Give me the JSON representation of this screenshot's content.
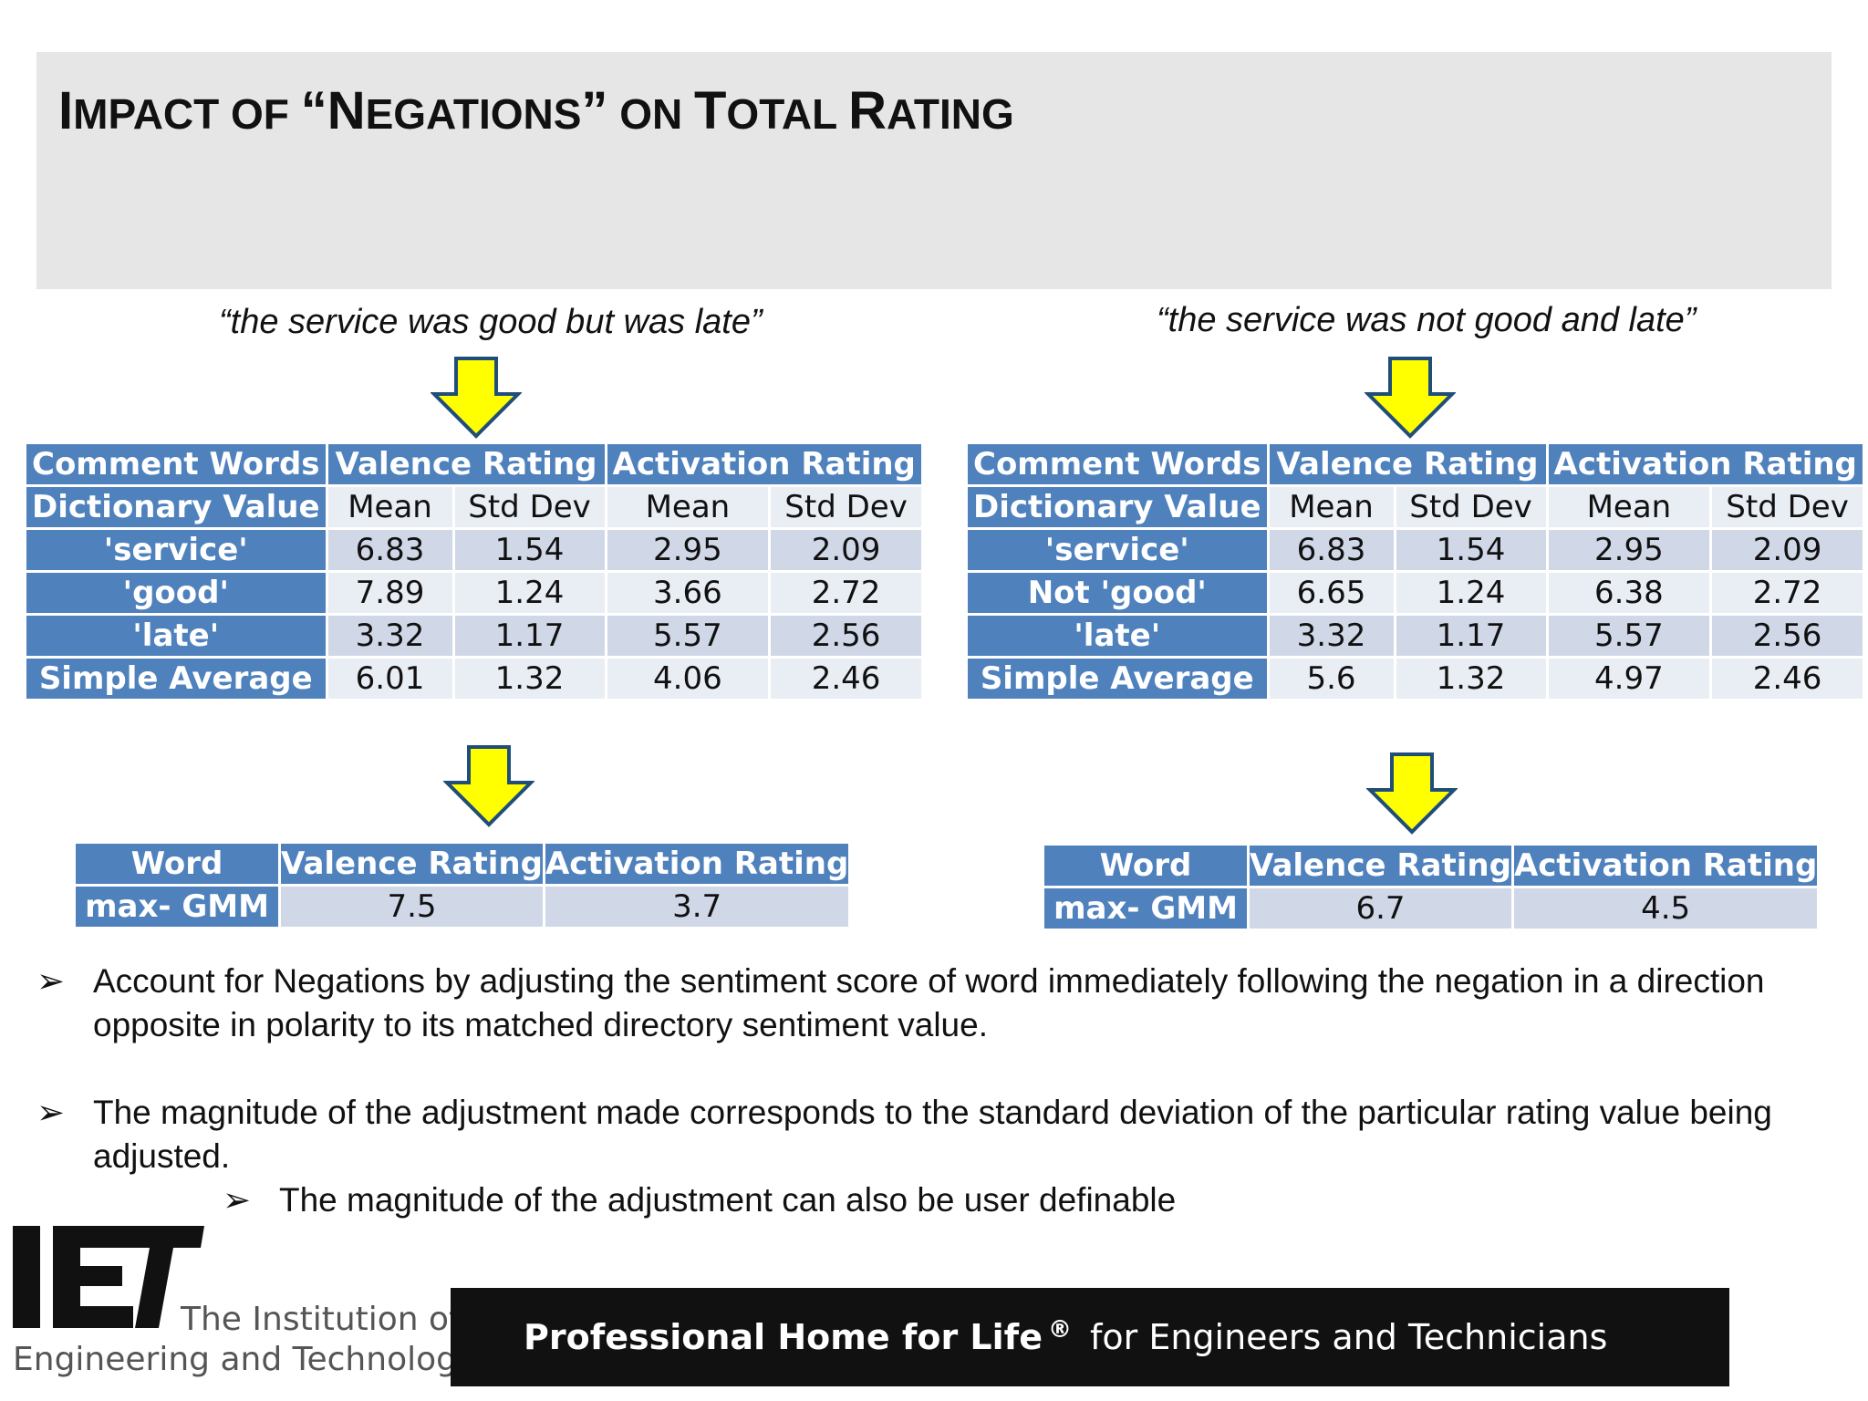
{
  "title": {
    "parts": [
      {
        "big": "I",
        "small": "MPACT OF "
      },
      {
        "big": "“N",
        "small": "EGATIONS"
      },
      {
        "big": "”",
        "small": " ON "
      },
      {
        "big": "T",
        "small": "OTAL "
      },
      {
        "big": "R",
        "small": "ATING"
      }
    ],
    "text": "Impact of “Negations” on Total Rating"
  },
  "left": {
    "quote": "“the service was good but was late”",
    "table": {
      "headers": {
        "words": "Comment Words",
        "valence": "Valence Rating",
        "activation": "Activation Rating"
      },
      "subheaders": {
        "dict": "Dictionary Value",
        "mean": "Mean",
        "std": "Std Dev"
      },
      "rows": [
        {
          "label": "'service'",
          "v_mean": "6.83",
          "v_std": "1.54",
          "a_mean": "2.95",
          "a_std": "2.09"
        },
        {
          "label": "'good'",
          "v_mean": "7.89",
          "v_std": "1.24",
          "a_mean": "3.66",
          "a_std": "2.72"
        },
        {
          "label": "'late'",
          "v_mean": "3.32",
          "v_std": "1.17",
          "a_mean": "5.57",
          "a_std": "2.56"
        },
        {
          "label": "Simple Average",
          "v_mean": "6.01",
          "v_std": "1.32",
          "a_mean": "4.06",
          "a_std": "2.46"
        }
      ]
    },
    "result": {
      "headers": {
        "word": "Word",
        "valence": "Valence Rating",
        "activation": "Activation Rating"
      },
      "label": "max- GMM",
      "valence": "7.5",
      "activation": "3.7"
    }
  },
  "right": {
    "quote": "“the service was not good and late”",
    "table": {
      "headers": {
        "words": "Comment Words",
        "valence": "Valence Rating",
        "activation": "Activation Rating"
      },
      "subheaders": {
        "dict": "Dictionary Value",
        "mean": "Mean",
        "std": "Std Dev"
      },
      "rows": [
        {
          "label": "'service'",
          "v_mean": "6.83",
          "v_std": "1.54",
          "a_mean": "2.95",
          "a_std": "2.09"
        },
        {
          "label": "Not 'good'",
          "v_mean": "6.65",
          "v_std": "1.24",
          "a_mean": "6.38",
          "a_std": "2.72"
        },
        {
          "label": "'late'",
          "v_mean": "3.32",
          "v_std": "1.17",
          "a_mean": "5.57",
          "a_std": "2.56"
        },
        {
          "label": "Simple Average",
          "v_mean": "5.6",
          "v_std": "1.32",
          "a_mean": "4.97",
          "a_std": "2.46"
        }
      ]
    },
    "result": {
      "headers": {
        "word": "Word",
        "valence": "Valence Rating",
        "activation": "Activation Rating"
      },
      "label": "max- GMM",
      "valence": "6.7",
      "activation": "4.5"
    }
  },
  "bullets": {
    "marker": "➢",
    "items": [
      "Account for Negations by adjusting the sentiment score of word immediately following the negation in a direction opposite in polarity to its matched directory sentiment value.",
      "The magnitude of the adjustment made corresponds to the standard deviation of the particular rating value being adjusted.",
      "The magnitude of the adjustment can also be user definable"
    ]
  },
  "logo": {
    "letters": "IET",
    "line1": "The Institution of",
    "line2": "Engineering and Technology"
  },
  "banner": {
    "main": "Professional Home for Life",
    "reg": "®",
    "rest": "for Engineers and Technicians"
  },
  "colors": {
    "header_blue": "#4f81bd",
    "cell_dark": "#d0d8e8",
    "cell_light": "#e9edf4",
    "arrow_fill": "#ffff00",
    "arrow_stroke": "#1f4e79"
  }
}
